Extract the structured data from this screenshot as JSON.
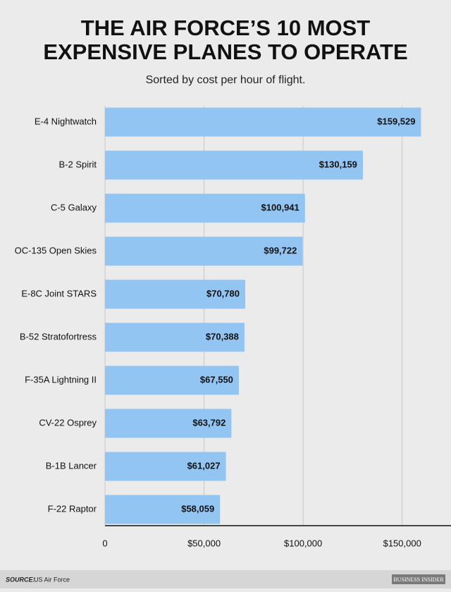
{
  "chart_data": {
    "type": "barh",
    "title": [
      "THE AIR FORCE’S 10 MOST",
      "EXPENSIVE PLANES TO OPERATE"
    ],
    "subtitle": "Sorted by cost per hour of flight.",
    "categories": [
      "E-4 Nightwatch",
      "B-2 Spirit",
      "C-5 Galaxy",
      "OC-135 Open Skies",
      "E-8C Joint STARS",
      "B-52 Stratofortress",
      "F-35A Lightning II",
      "CV-22 Osprey",
      "B-1B Lancer",
      "F-22 Raptor"
    ],
    "values": [
      159529,
      130159,
      100941,
      99722,
      70780,
      70388,
      67550,
      63792,
      61027,
      58059
    ],
    "value_labels": [
      "$159,529",
      "$130,159",
      "$100,941",
      "$99,722",
      "$70,780",
      "$70,388",
      "$67,550",
      "$63,792",
      "$61,027",
      "$58,059"
    ],
    "color": "#92c5f2",
    "xlim": [
      0,
      175000
    ],
    "xticks": [
      0,
      {
        "value": 50000,
        "label": "$50,000"
      },
      {
        "value": 100000,
        "label": "$100,000"
      },
      {
        "value": 150000,
        "label": "$150,000"
      }
    ],
    "grid": true,
    "source_label": "SOURCE:",
    "source": "US Air Force",
    "brand": "BUSINESS INSIDER"
  }
}
